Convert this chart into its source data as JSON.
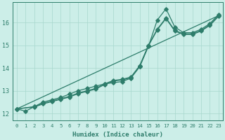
{
  "xlabel": "Humidex (Indice chaleur)",
  "ylabel": "",
  "bg_color": "#cceee8",
  "line_color": "#2e7d6b",
  "grid_color": "#a8d8ce",
  "xlim": [
    -0.5,
    23.5
  ],
  "ylim": [
    11.7,
    16.9
  ],
  "xticks": [
    0,
    1,
    2,
    3,
    4,
    5,
    6,
    7,
    8,
    9,
    10,
    11,
    12,
    13,
    14,
    15,
    16,
    17,
    18,
    19,
    20,
    21,
    22,
    23
  ],
  "yticks": [
    12,
    13,
    14,
    15,
    16
  ],
  "line1_x": [
    0,
    1,
    2,
    3,
    4,
    5,
    6,
    7,
    8,
    9,
    10,
    11,
    12,
    13,
    14,
    15,
    16,
    17,
    18,
    19,
    20,
    21,
    22,
    23
  ],
  "line1_y": [
    12.2,
    12.1,
    12.3,
    12.5,
    12.6,
    12.7,
    12.85,
    13.0,
    13.1,
    13.2,
    13.3,
    13.35,
    13.4,
    13.55,
    14.05,
    14.95,
    16.1,
    16.6,
    15.8,
    15.55,
    15.55,
    15.7,
    15.95,
    16.35
  ],
  "line2_x": [
    0,
    2,
    3,
    4,
    5,
    6,
    7,
    8,
    9,
    10,
    11,
    12,
    13,
    14,
    15,
    16,
    17,
    18,
    19,
    20,
    21,
    22,
    23
  ],
  "line2_y": [
    12.2,
    12.3,
    12.45,
    12.55,
    12.65,
    12.75,
    12.9,
    13.0,
    13.1,
    13.3,
    13.45,
    13.5,
    13.6,
    14.1,
    15.0,
    15.7,
    16.2,
    15.65,
    15.5,
    15.5,
    15.65,
    15.9,
    16.3
  ],
  "line3_x": [
    0,
    2,
    3,
    4,
    5,
    6,
    7,
    8,
    9,
    10,
    11,
    12,
    13,
    14,
    15,
    16,
    17,
    18,
    19,
    20,
    21,
    22,
    23
  ],
  "line3_y": [
    12.2,
    12.28,
    12.42,
    12.52,
    12.62,
    12.72,
    12.87,
    12.97,
    13.07,
    13.27,
    13.42,
    13.47,
    13.57,
    14.07,
    14.97,
    15.67,
    16.17,
    15.62,
    15.47,
    15.47,
    15.62,
    15.87,
    16.27
  ],
  "line4_x": [
    0,
    23
  ],
  "line4_y": [
    12.2,
    16.3
  ]
}
